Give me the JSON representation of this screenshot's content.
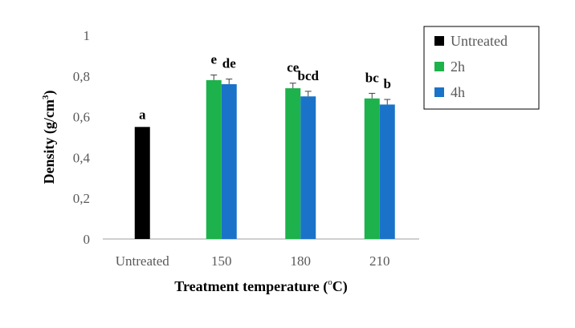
{
  "chart_data": {
    "type": "bar",
    "categories": [
      "Untreated",
      "150",
      "180",
      "210"
    ],
    "series": [
      {
        "name": "Untreated",
        "color": "#000000",
        "values": [
          0.55,
          null,
          null,
          null
        ],
        "errors": [
          0,
          null,
          null,
          null
        ],
        "letters": [
          "a",
          "",
          "",
          ""
        ]
      },
      {
        "name": "2h",
        "color": "#1db24b",
        "values": [
          null,
          0.78,
          0.74,
          0.69
        ],
        "errors": [
          null,
          0.025,
          0.025,
          0.025
        ],
        "letters": [
          "",
          "e",
          "ce",
          "bc"
        ]
      },
      {
        "name": "4h",
        "color": "#1a73c9",
        "values": [
          null,
          0.76,
          0.7,
          0.66
        ],
        "errors": [
          null,
          0.025,
          0.025,
          0.025
        ],
        "letters": [
          "",
          "de",
          "bcd",
          "b"
        ]
      }
    ],
    "yticks": [
      "0",
      "0,2",
      "0,4",
      "0,6",
      "0,8",
      "1"
    ],
    "ylim": [
      0,
      1
    ],
    "ylabel": {
      "main": "Density (g/cm",
      "sup": "3",
      "end": ")"
    },
    "xlabel": {
      "main": "Treatment temperature (",
      "sup": "o",
      "end": "C)"
    },
    "legend_position": "top-right",
    "grid": false
  }
}
